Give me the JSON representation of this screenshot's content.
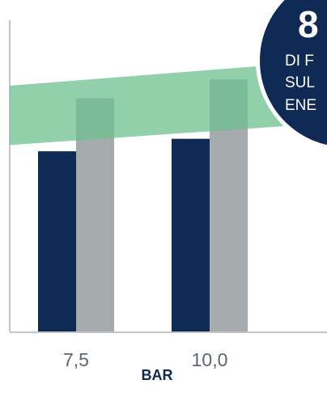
{
  "chart_data": {
    "type": "bar",
    "categories": [
      "7,5",
      "10,0"
    ],
    "series": [
      {
        "values": [
          58,
          62
        ],
        "color": "#0f2a55"
      },
      {
        "values": [
          75,
          81
        ],
        "color": "#a6abae"
      }
    ],
    "band": {
      "from": [
        60,
        67
      ],
      "to": [
        79,
        87
      ],
      "color": "#6cc08f"
    },
    "xlabel": "BAR",
    "ylim": [
      0,
      100
    ],
    "grid": false
  },
  "badge": {
    "number": "8",
    "lines": [
      "DI F",
      "SUL",
      "ENE"
    ],
    "color": "#0f2a55"
  }
}
